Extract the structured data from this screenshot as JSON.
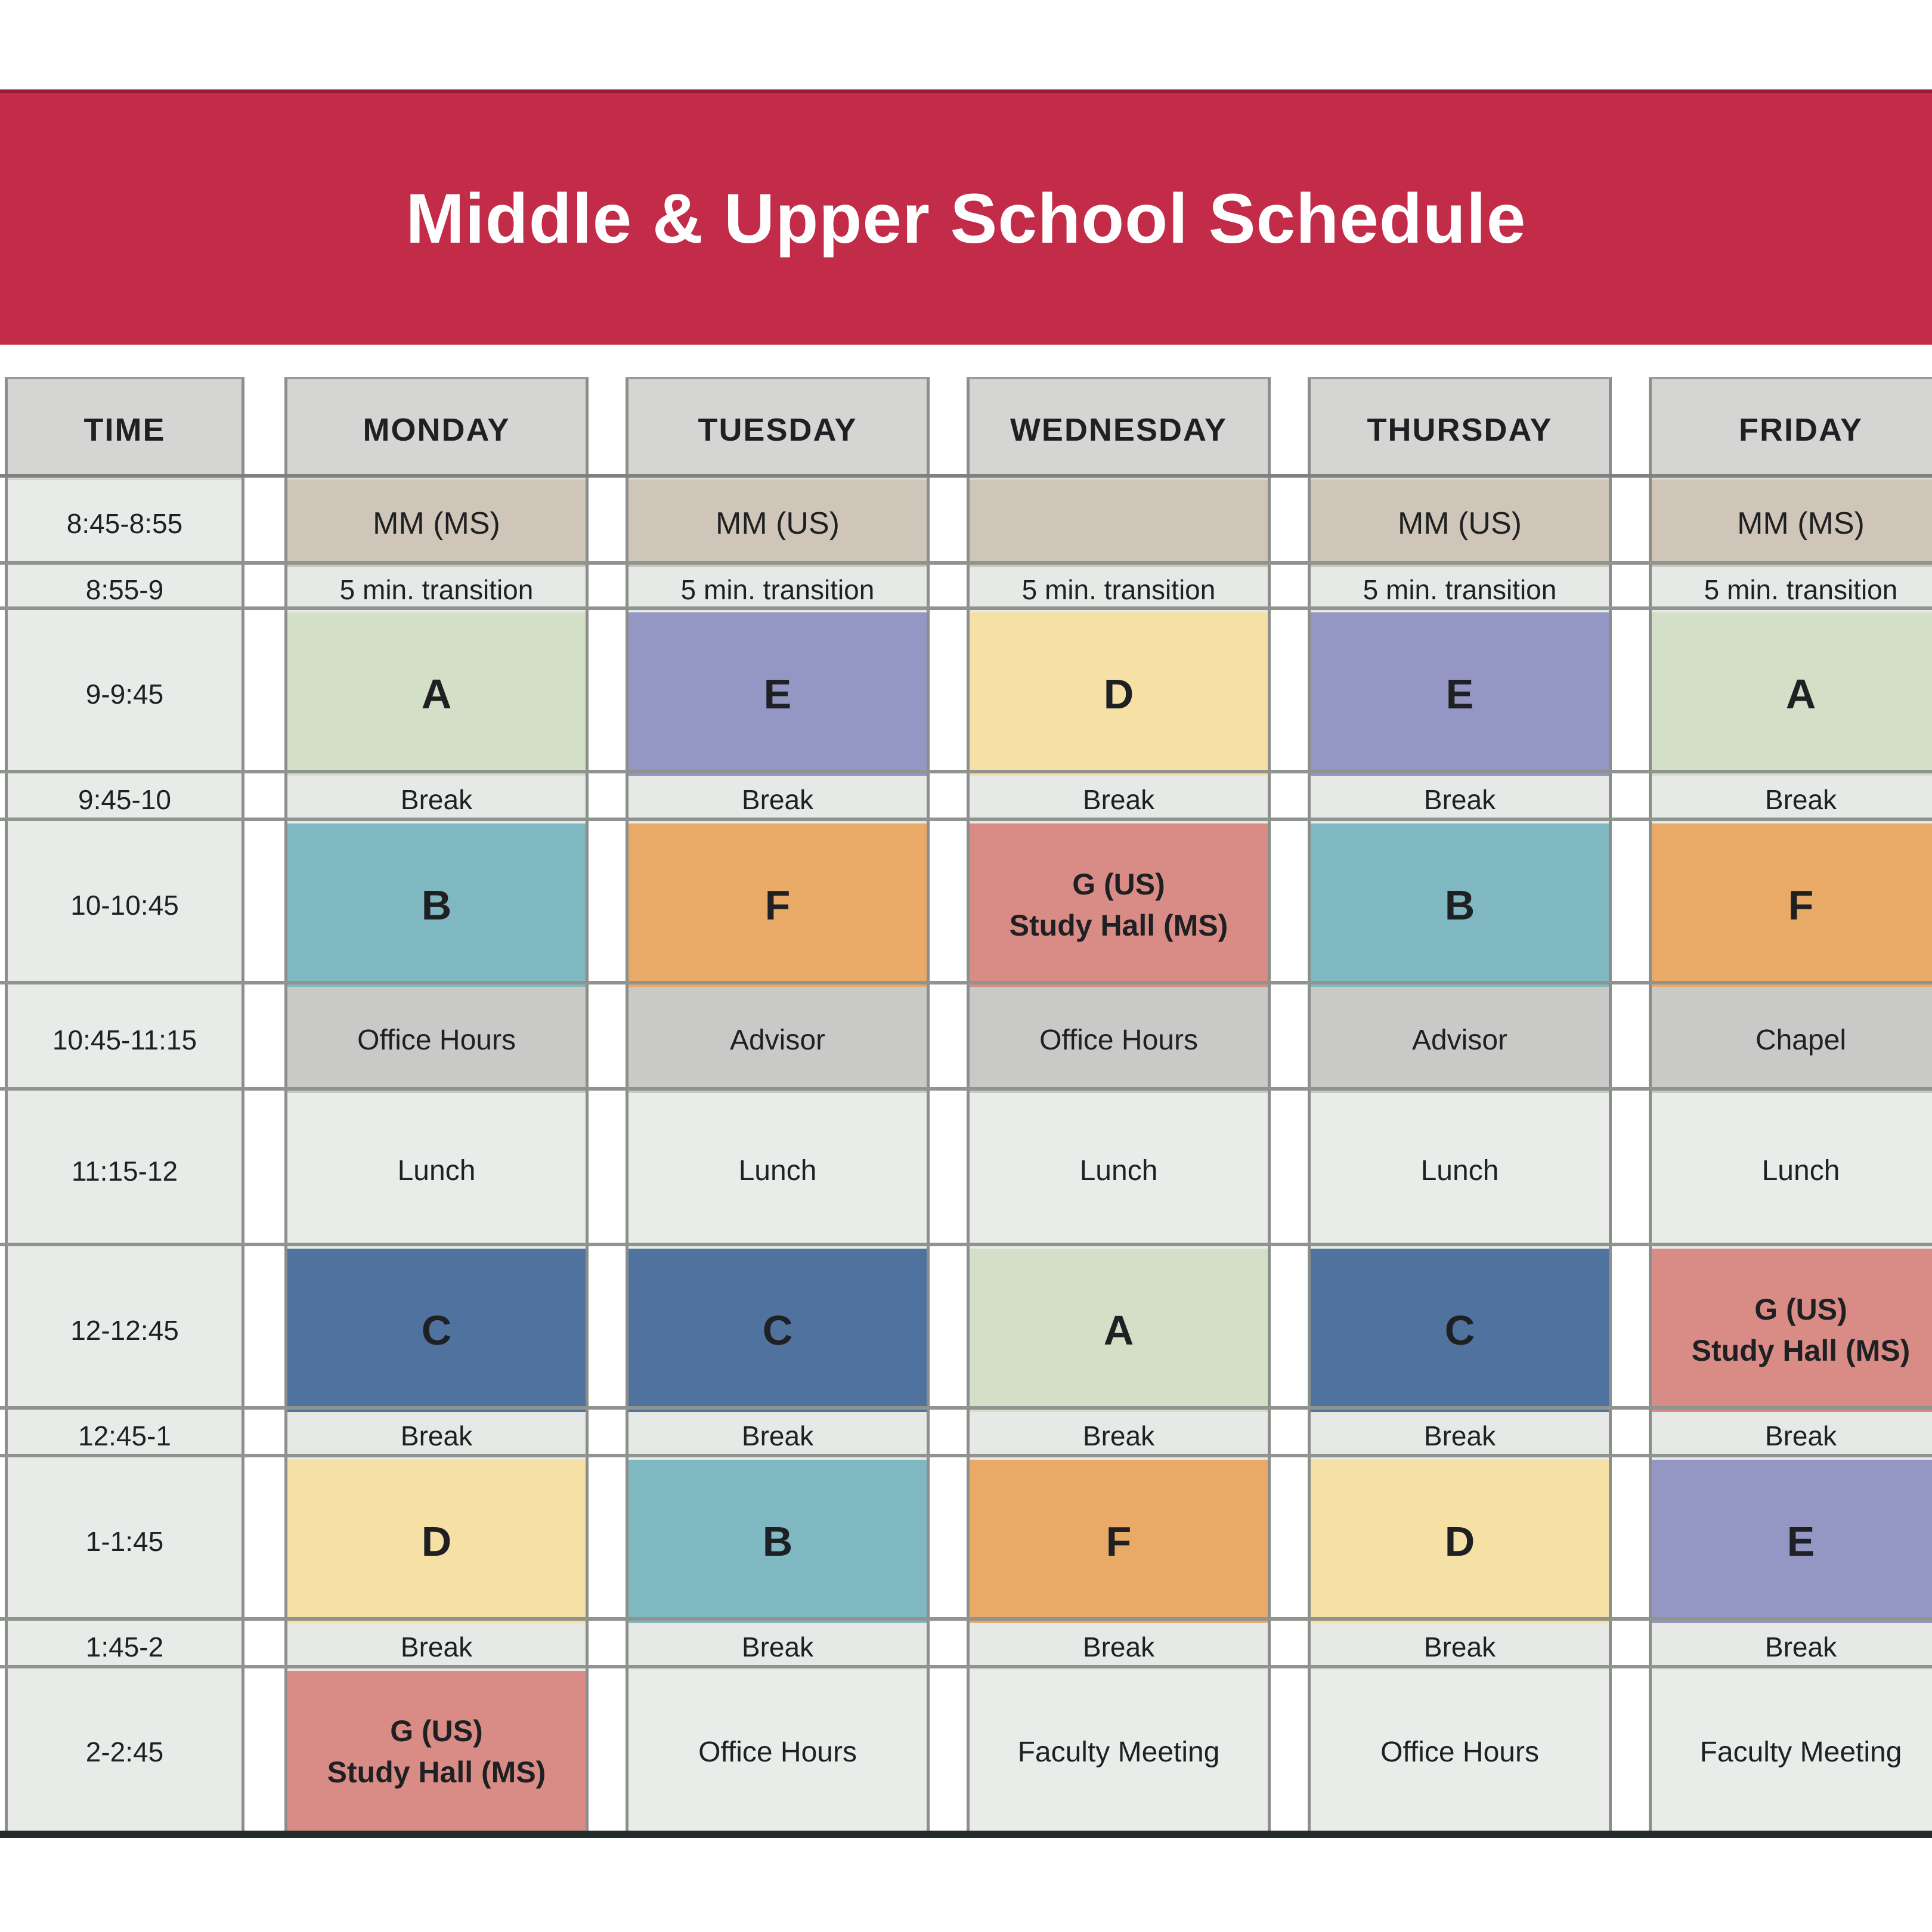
{
  "title": "Middle & Upper School Schedule",
  "banner": {
    "bg": "#c22c49",
    "top_line": "#9b1c39"
  },
  "palette": {
    "header_bg": "#d5d6d4",
    "time_bg": "#e9ebe8",
    "mm": "#cfc6b9",
    "micro": "#e7e9e6",
    "label_gray": "#c9cac7",
    "plain": "#eaece9",
    "A": "#d4dfc8",
    "B": "#7fb8c1",
    "C": "#50729f",
    "D": "#f5e0a6",
    "E": "#9496c3",
    "F": "#e9a967",
    "G": "#d98c86",
    "grid_line": "#90948f",
    "header_line": "#7e817e",
    "bottom_bar": "#232b2c",
    "text": "#1f2023"
  },
  "schedule": {
    "time_header": "TIME",
    "times": [
      "8:45-8:55",
      "8:55-9",
      "9-9:45",
      "9:45-10",
      "10-10:45",
      "10:45-11:15",
      "11:15-12",
      "12-12:45",
      "12:45-1",
      "1-1:45",
      "1:45-2",
      "2-2:45"
    ],
    "days": [
      {
        "name": "MONDAY",
        "cells": [
          {
            "text": "MM (MS)",
            "color": "mm",
            "style": "mm"
          },
          {
            "text": "5 min. transition",
            "color": "micro",
            "style": "micro"
          },
          {
            "text": "A",
            "color": "A",
            "style": "letter"
          },
          {
            "text": "Break",
            "color": "micro",
            "style": "micro"
          },
          {
            "text": "B",
            "color": "B",
            "style": "letter"
          },
          {
            "text": "Office Hours",
            "color": "label_gray",
            "style": "label"
          },
          {
            "text": "Lunch",
            "color": "plain",
            "style": "label"
          },
          {
            "text": "C",
            "color": "C",
            "style": "letter"
          },
          {
            "text": "Break",
            "color": "micro",
            "style": "micro"
          },
          {
            "text": "D",
            "color": "D",
            "style": "letter"
          },
          {
            "text": "Break",
            "color": "micro",
            "style": "micro"
          },
          {
            "text": "G (US)\nStudy Hall (MS)",
            "color": "G",
            "style": "g2"
          }
        ]
      },
      {
        "name": "TUESDAY",
        "cells": [
          {
            "text": "MM (US)",
            "color": "mm",
            "style": "mm"
          },
          {
            "text": "5 min. transition",
            "color": "micro",
            "style": "micro"
          },
          {
            "text": "E",
            "color": "E",
            "style": "letter"
          },
          {
            "text": "Break",
            "color": "micro",
            "style": "micro"
          },
          {
            "text": "F",
            "color": "F",
            "style": "letter"
          },
          {
            "text": "Advisor",
            "color": "label_gray",
            "style": "label"
          },
          {
            "text": "Lunch",
            "color": "plain",
            "style": "label"
          },
          {
            "text": "C",
            "color": "C",
            "style": "letter"
          },
          {
            "text": "Break",
            "color": "micro",
            "style": "micro"
          },
          {
            "text": "B",
            "color": "B",
            "style": "letter"
          },
          {
            "text": "Break",
            "color": "micro",
            "style": "micro"
          },
          {
            "text": "Office Hours",
            "color": "plain",
            "style": "label"
          }
        ]
      },
      {
        "name": "WEDNESDAY",
        "cells": [
          {
            "text": "",
            "color": "mm",
            "style": "mm"
          },
          {
            "text": "5 min. transition",
            "color": "micro",
            "style": "micro"
          },
          {
            "text": "D",
            "color": "D",
            "style": "letter"
          },
          {
            "text": "Break",
            "color": "micro",
            "style": "micro"
          },
          {
            "text": "G (US)\nStudy Hall (MS)",
            "color": "G",
            "style": "g2"
          },
          {
            "text": "Office Hours",
            "color": "label_gray",
            "style": "label"
          },
          {
            "text": "Lunch",
            "color": "plain",
            "style": "label"
          },
          {
            "text": "A",
            "color": "A",
            "style": "letter"
          },
          {
            "text": "Break",
            "color": "micro",
            "style": "micro"
          },
          {
            "text": "F",
            "color": "F",
            "style": "letter"
          },
          {
            "text": "Break",
            "color": "micro",
            "style": "micro"
          },
          {
            "text": "Faculty Meeting",
            "color": "plain",
            "style": "label"
          }
        ]
      },
      {
        "name": "THURSDAY",
        "cells": [
          {
            "text": "MM (US)",
            "color": "mm",
            "style": "mm"
          },
          {
            "text": "5 min. transition",
            "color": "micro",
            "style": "micro"
          },
          {
            "text": "E",
            "color": "E",
            "style": "letter"
          },
          {
            "text": "Break",
            "color": "micro",
            "style": "micro"
          },
          {
            "text": "B",
            "color": "B",
            "style": "letter"
          },
          {
            "text": "Advisor",
            "color": "label_gray",
            "style": "label"
          },
          {
            "text": "Lunch",
            "color": "plain",
            "style": "label"
          },
          {
            "text": "C",
            "color": "C",
            "style": "letter"
          },
          {
            "text": "Break",
            "color": "micro",
            "style": "micro"
          },
          {
            "text": "D",
            "color": "D",
            "style": "letter"
          },
          {
            "text": "Break",
            "color": "micro",
            "style": "micro"
          },
          {
            "text": "Office Hours",
            "color": "plain",
            "style": "label"
          }
        ]
      },
      {
        "name": "FRIDAY",
        "cells": [
          {
            "text": "MM (MS)",
            "color": "mm",
            "style": "mm"
          },
          {
            "text": "5 min. transition",
            "color": "micro",
            "style": "micro"
          },
          {
            "text": "A",
            "color": "A",
            "style": "letter"
          },
          {
            "text": "Break",
            "color": "micro",
            "style": "micro"
          },
          {
            "text": "F",
            "color": "F",
            "style": "letter"
          },
          {
            "text": "Chapel",
            "color": "label_gray",
            "style": "label"
          },
          {
            "text": "Lunch",
            "color": "plain",
            "style": "label"
          },
          {
            "text": "G (US)\nStudy Hall (MS)",
            "color": "G",
            "style": "g2"
          },
          {
            "text": "Break",
            "color": "micro",
            "style": "micro"
          },
          {
            "text": "E",
            "color": "E",
            "style": "letter"
          },
          {
            "text": "Break",
            "color": "micro",
            "style": "micro"
          },
          {
            "text": "Faculty Meeting",
            "color": "plain",
            "style": "label"
          }
        ]
      }
    ]
  }
}
